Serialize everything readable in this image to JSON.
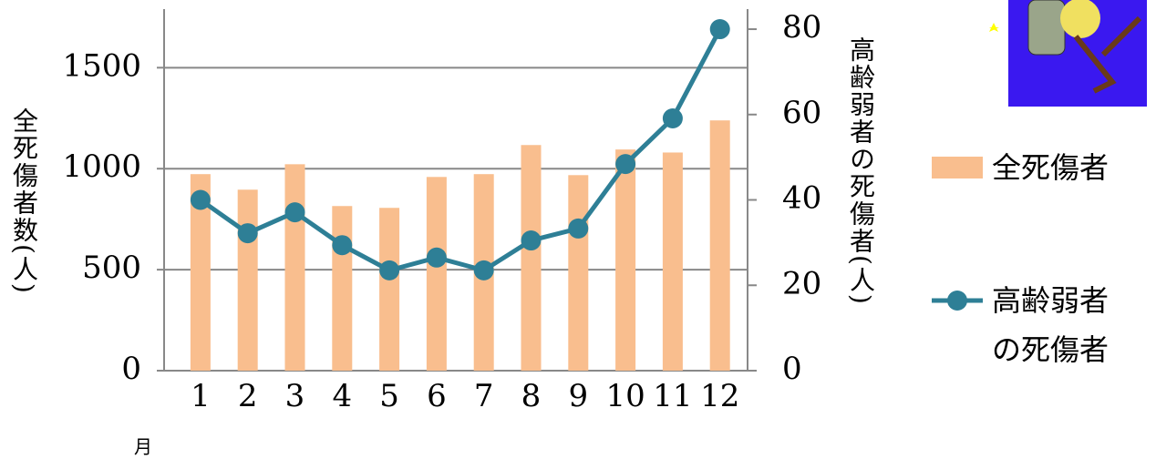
{
  "chart_data": {
    "type": "bar",
    "categories": [
      "1",
      "2",
      "3",
      "4",
      "5",
      "6",
      "7",
      "8",
      "9",
      "10",
      "11",
      "12"
    ],
    "series": [
      {
        "name": "全死傷者",
        "type": "bar",
        "color": "#f9be8e",
        "values": [
          973,
          896,
          1022,
          815,
          806,
          959,
          973,
          1117,
          968,
          1095,
          1080,
          1239
        ]
      },
      {
        "name": "高齢弱者の死傷者",
        "type": "line",
        "axis": "y2",
        "color": "#2e7f96",
        "values": [
          40,
          32.2,
          37.1,
          29.4,
          23.5,
          26.5,
          23.5,
          30.5,
          33.3,
          48.4,
          59.1,
          80
        ]
      }
    ],
    "ylim": [
      0,
      1790
    ],
    "yticks": [
      0,
      500,
      1000,
      1500
    ],
    "y2lim": [
      0,
      84.7
    ],
    "y2ticks": [
      0,
      20,
      40,
      60,
      80
    ],
    "ylabel": "全死傷者数(人)",
    "y2label": "高齢弱者の死傷者(人)",
    "xlabel": "月",
    "grid": true,
    "legend": "right"
  }
}
